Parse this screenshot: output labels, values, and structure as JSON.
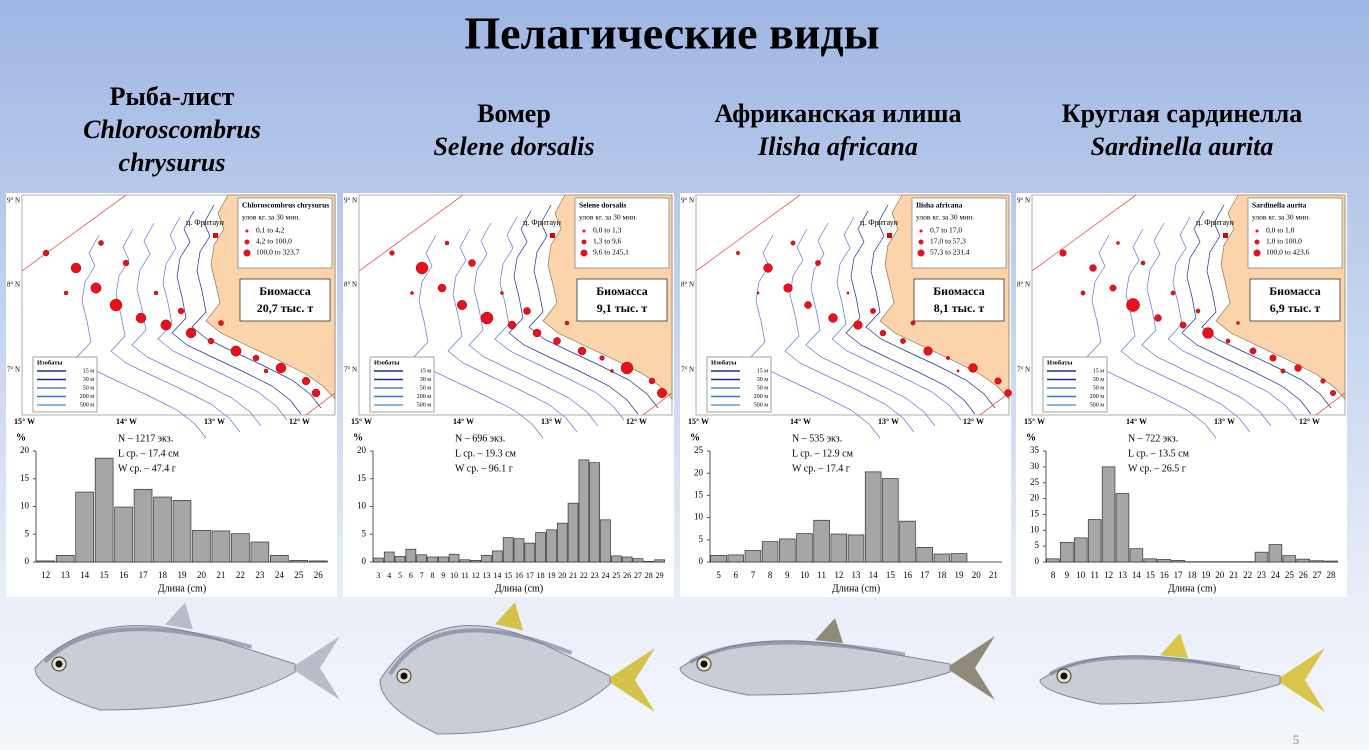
{
  "title": "Пелагические виды",
  "page_number": "5",
  "species": [
    {
      "common": "Рыба-лист",
      "latin": "Chloroscombrus chrysurus"
    },
    {
      "common": "Вомер",
      "latin": "Selene dorsalis"
    },
    {
      "common": "Африканская илиша",
      "latin": "Ilisha africana"
    },
    {
      "common": "Круглая сардинелла",
      "latin": "Sardinella aurita"
    }
  ],
  "map_axes": {
    "lat": [
      "9° N",
      "8° N",
      "7° N"
    ],
    "lon": [
      "15° W",
      "14° W",
      "13° W",
      "12° W"
    ]
  },
  "isobaths": {
    "title": "Изобаты",
    "levels": [
      "15 м",
      "30 м",
      "50 м",
      "200 м",
      "500 м"
    ]
  },
  "maps": [
    {
      "legend_title": "Chloroscombrus chrysurus",
      "legend_subtitle": "улов кг. за 30 мин.",
      "legend_ranges": [
        "0,1  to  4,2",
        "4,2  to  100,0",
        "100,0  to  323,7"
      ],
      "city": "ц. Фритаун",
      "biomass_label": "Биомасса",
      "biomass_value": "20,7 тыс.  т"
    },
    {
      "legend_title": "Selene dorsalis",
      "legend_subtitle": "улов кг. за 30 мин.",
      "legend_ranges": [
        "0,0  to  1,3",
        "1,3  to  9,6",
        "9,6  to  245,1"
      ],
      "city": "ц. Фритаун",
      "biomass_label": "Биомасса",
      "biomass_value": "9,1 тыс.  т"
    },
    {
      "legend_title": "Ilisha africana",
      "legend_subtitle": "улов кг. за 30 мин.",
      "legend_ranges": [
        "0,7  to  17,0",
        "17,0  to  57,3",
        "57,3  to  231,4"
      ],
      "city": "ц. Фритаун",
      "biomass_label": "Биомасса",
      "biomass_value": "8,1 тыс.  т"
    },
    {
      "legend_title": "Sardinella aurita",
      "legend_subtitle": "улов кг. за 30 мин.",
      "legend_ranges": [
        "0,0  to  1,0",
        "1,0  to  100,0",
        "100,0  to  423,6"
      ],
      "city": "ц. Фритаун",
      "biomass_label": "Биомасса",
      "biomass_value": "6,9 тыс.  т"
    }
  ],
  "chart_data": [
    {
      "type": "bar",
      "color": "#a6a6a6",
      "y_label": "%",
      "x_label": "Длина (cm)",
      "annotations": [
        "N – 1217 экз.",
        "L ср. – 17.4 см",
        "W ср. – 47.4 г"
      ],
      "categories": [
        "12",
        "13",
        "14",
        "15",
        "16",
        "17",
        "18",
        "19",
        "20",
        "21",
        "22",
        "23",
        "24",
        "25",
        "26"
      ],
      "values": [
        0.2,
        1.2,
        12.6,
        18.7,
        9.9,
        13.1,
        11.7,
        11.1,
        5.7,
        5.6,
        5.1,
        3.6,
        1.2,
        0.3,
        0.2
      ],
      "ylim": [
        0,
        20
      ],
      "yticks": [
        0,
        5,
        10,
        15,
        20
      ]
    },
    {
      "type": "bar",
      "color": "#a6a6a6",
      "y_label": "%",
      "x_label": "Длина (cm)",
      "annotations": [
        "N – 696 экз.",
        "L ср. – 19.3 см",
        "W ср. – 96.1 г"
      ],
      "categories": [
        "3",
        "4",
        "5",
        "6",
        "7",
        "8",
        "9",
        "10",
        "11",
        "12",
        "13",
        "14",
        "15",
        "16",
        "17",
        "18",
        "19",
        "20",
        "21",
        "22",
        "23",
        "24",
        "25",
        "26",
        "27",
        "28",
        "29"
      ],
      "values": [
        0.7,
        1.8,
        1.0,
        2.3,
        1.3,
        0.9,
        0.9,
        1.4,
        0.4,
        0.3,
        1.2,
        2.0,
        4.4,
        4.2,
        3.4,
        5.3,
        5.8,
        7.0,
        10.6,
        18.4,
        17.9,
        7.6,
        1.1,
        0.9,
        0.6,
        0.1,
        0.4
      ],
      "ylim": [
        0,
        20
      ],
      "yticks": [
        0,
        5,
        10,
        15,
        20
      ]
    },
    {
      "type": "bar",
      "color": "#a6a6a6",
      "y_label": "%",
      "x_label": "Длина (cm)",
      "annotations": [
        "N – 535 экз.",
        "L ср. – 12.9 см",
        "W ср. – 17.4 г"
      ],
      "categories": [
        "5",
        "6",
        "7",
        "8",
        "9",
        "10",
        "11",
        "12",
        "13",
        "14",
        "15",
        "16",
        "17",
        "18",
        "19",
        "20",
        "21"
      ],
      "values": [
        1.5,
        1.6,
        2.6,
        4.6,
        5.2,
        6.4,
        9.4,
        6.3,
        6.1,
        20.3,
        18.8,
        9.2,
        3.3,
        1.8,
        1.9,
        0,
        0
      ],
      "ylim": [
        0,
        25
      ],
      "yticks": [
        0,
        5,
        10,
        15,
        20,
        25
      ]
    },
    {
      "type": "bar",
      "color": "#a6a6a6",
      "y_label": "%",
      "x_label": "Длина (cm)",
      "annotations": [
        "N – 722 экз.",
        "L ср. – 13.5 см",
        "W ср. – 26.5 г"
      ],
      "categories": [
        "8",
        "9",
        "10",
        "11",
        "12",
        "13",
        "14",
        "15",
        "16",
        "17",
        "18",
        "19",
        "20",
        "21",
        "22",
        "23",
        "24",
        "25",
        "26",
        "27",
        "28"
      ],
      "values": [
        1.0,
        6.2,
        7.6,
        13.4,
        30.0,
        21.6,
        4.2,
        1.0,
        0.8,
        0.5,
        0.1,
        0.1,
        0.1,
        0.1,
        0.1,
        3.1,
        5.5,
        2.0,
        0.9,
        0.4,
        0.3
      ],
      "ylim": [
        0,
        35
      ],
      "yticks": [
        0,
        5,
        10,
        15,
        20,
        25,
        30,
        35
      ]
    }
  ]
}
